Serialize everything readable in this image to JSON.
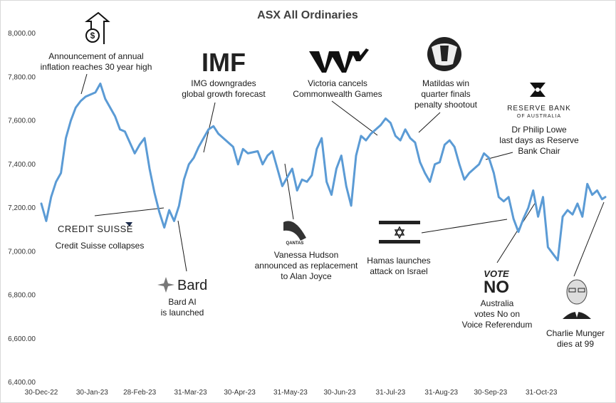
{
  "chart_data": {
    "type": "line",
    "title": "ASX All Ordinaries",
    "xlabel": "",
    "ylabel": "",
    "ylim": [
      6400,
      8000
    ],
    "y_ticks": [
      "8,000.00",
      "7,800.00",
      "7,600.00",
      "7,400.00",
      "7,200.00",
      "7,000.00",
      "6,800.00",
      "6,600.00",
      "6,400.00"
    ],
    "y_tick_values": [
      8000,
      7800,
      7600,
      7400,
      7200,
      7000,
      6800,
      6600,
      6400
    ],
    "x_ticks": [
      "30-Dec-22",
      "30-Jan-23",
      "28-Feb-23",
      "31-Mar-23",
      "30-Apr-23",
      "31-May-23",
      "30-Jun-23",
      "31-Jul-23",
      "31-Aug-23",
      "30-Sep-23",
      "31-Oct-23"
    ],
    "x_tick_values": [
      0,
      31,
      60,
      91,
      121,
      152,
      182,
      213,
      244,
      274,
      305
    ],
    "x_range": [
      0,
      344
    ],
    "series": [
      {
        "name": "ASX All Ordinaries",
        "color": "#5b9bd5",
        "x": [
          0,
          3,
          6,
          9,
          12,
          15,
          18,
          21,
          24,
          27,
          30,
          33,
          36,
          39,
          42,
          45,
          48,
          51,
          54,
          57,
          60,
          63,
          66,
          69,
          72,
          75,
          78,
          81,
          84,
          87,
          90,
          93,
          96,
          99,
          102,
          105,
          108,
          111,
          114,
          117,
          120,
          123,
          126,
          129,
          132,
          135,
          138,
          141,
          144,
          147,
          150,
          153,
          156,
          159,
          162,
          165,
          168,
          171,
          174,
          177,
          180,
          183,
          186,
          189,
          192,
          195,
          198,
          201,
          204,
          207,
          210,
          213,
          216,
          219,
          222,
          225,
          228,
          231,
          234,
          237,
          240,
          243,
          246,
          249,
          252,
          255,
          258,
          261,
          264,
          267,
          270,
          273,
          276,
          279,
          282,
          285,
          288,
          291,
          294,
          297,
          300,
          303,
          306,
          309,
          312,
          315,
          318,
          321,
          324,
          327,
          330,
          333,
          336,
          339,
          342,
          344
        ],
        "values": [
          7220,
          7140,
          7250,
          7320,
          7360,
          7520,
          7600,
          7660,
          7690,
          7710,
          7720,
          7730,
          7770,
          7700,
          7660,
          7620,
          7560,
          7550,
          7500,
          7450,
          7490,
          7520,
          7380,
          7270,
          7180,
          7110,
          7190,
          7140,
          7210,
          7330,
          7400,
          7430,
          7480,
          7520,
          7560,
          7575,
          7540,
          7520,
          7500,
          7480,
          7400,
          7470,
          7450,
          7455,
          7460,
          7400,
          7440,
          7460,
          7380,
          7300,
          7340,
          7380,
          7280,
          7330,
          7320,
          7350,
          7470,
          7520,
          7320,
          7260,
          7380,
          7440,
          7300,
          7210,
          7440,
          7530,
          7510,
          7540,
          7560,
          7580,
          7610,
          7590,
          7530,
          7510,
          7560,
          7520,
          7500,
          7410,
          7360,
          7320,
          7400,
          7410,
          7490,
          7510,
          7480,
          7400,
          7330,
          7360,
          7380,
          7400,
          7450,
          7430,
          7360,
          7250,
          7230,
          7250,
          7150,
          7090,
          7150,
          7200,
          7280,
          7160,
          7250,
          7020,
          6990,
          6960,
          7160,
          7190,
          7170,
          7220,
          7160,
          7310,
          7260,
          7280,
          7240,
          7250
        ]
      }
    ],
    "annotations": [
      {
        "name": "inflation",
        "lines": [
          "Announcement of annual",
          "inflation reaches 30 year high"
        ],
        "date_index": 36
      },
      {
        "name": "imf",
        "logo": "IMF",
        "lines": [
          "IMG downgrades",
          "global growth forecast"
        ],
        "date_index": 91
      },
      {
        "name": "victoria",
        "lines": [
          "Victoria cancels",
          "Commonwealth Games"
        ],
        "date_index": 204
      },
      {
        "name": "matildas",
        "lines": [
          "Matildas win",
          "quarter finals",
          "penalty shootout"
        ],
        "date_index": 229
      },
      {
        "name": "rba",
        "logo_lines": [
          "RESERVE BANK",
          "OF AUSTRALIA"
        ],
        "lines": [
          "Dr Philip Lowe",
          "last days as Reserve",
          "Bank Chair"
        ],
        "date_index": 270
      },
      {
        "name": "credit-suisse",
        "logo": "CREDIT SUISSE",
        "lines": [
          "Credit Suisse collapses"
        ],
        "date_index": 75
      },
      {
        "name": "bard",
        "logo": "Bard",
        "lines": [
          "Bard AI",
          "is launched"
        ],
        "date_index": 78
      },
      {
        "name": "qantas",
        "logo": "QANTAS",
        "lines": [
          "Vanessa Hudson",
          "announced as replacement",
          "to Alan Joyce"
        ],
        "date_index": 155
      },
      {
        "name": "hamas",
        "lines": [
          "Hamas launches",
          "attack on Israel"
        ],
        "date_index": 284
      },
      {
        "name": "voice",
        "logo_lines": [
          "VOTE",
          "NO"
        ],
        "lines": [
          "Australia",
          "votes No on",
          "Voice Referendum"
        ],
        "date_index": 292
      },
      {
        "name": "munger",
        "lines": [
          "Charlie Munger",
          "dies at 99"
        ],
        "date_index": 337
      }
    ]
  }
}
